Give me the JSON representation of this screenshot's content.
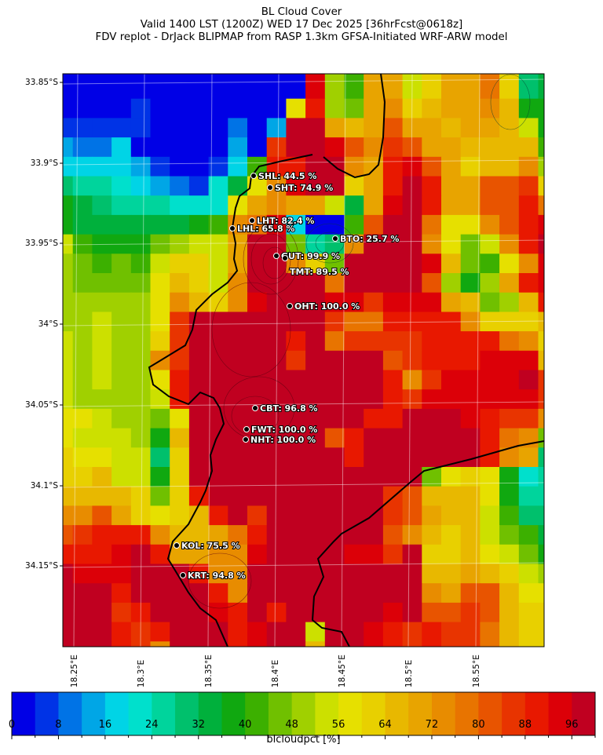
{
  "title": {
    "line1": "BL Cloud Cover",
    "line2": "Valid 1400 LST (1200Z) WED 17 Dec 2025 [36hrFcst@0618z]",
    "line3": "FDV replot - DrJack BLIPMAP from RASP 1.3km GFSA-Initiated WRF-ARW model"
  },
  "lat_ticks": [
    "33.85°S",
    "33.9°S",
    "33.95°S",
    "34°S",
    "34.05°S",
    "34.1°S",
    "34.15°S"
  ],
  "lon_ticks": [
    "18.25°E",
    "18.3°E",
    "18.35°E",
    "18.4°E",
    "18.45°E",
    "18.5°E",
    "18.55°E"
  ],
  "stations": [
    {
      "label": "SHL: 44.5 %"
    },
    {
      "label": "SHT: 74.9 %"
    },
    {
      "label": "LHT: 82.4 %"
    },
    {
      "label": "LHL: 65.8 %"
    },
    {
      "label": "BTO: 25.7 %"
    },
    {
      "label": "GUT: 99.9 %"
    },
    {
      "label": "TMT: 89.5 %"
    },
    {
      "label": "OHT: 100.0 %"
    },
    {
      "label": "CBT: 96.8 %"
    },
    {
      "label": "FWT: 100.0 %"
    },
    {
      "label": "NHT: 100.0 %"
    },
    {
      "label": "KOL: 75.5 %"
    },
    {
      "label": "KRT: 94.8 %"
    }
  ],
  "colorbar": {
    "label": "blcloudpct [%]",
    "ticks": [
      "0",
      "8",
      "16",
      "24",
      "32",
      "40",
      "48",
      "56",
      "64",
      "72",
      "80",
      "88",
      "96"
    ],
    "range": [
      0,
      100
    ],
    "bin_width": 4,
    "colors": [
      "#0000e6",
      "#0033e6",
      "#0073e6",
      "#00a6e6",
      "#00d4e6",
      "#00e0cc",
      "#00d49c",
      "#00c06c",
      "#00b03c",
      "#10a810",
      "#3cb000",
      "#70c000",
      "#a0d000",
      "#cce000",
      "#e6e000",
      "#e8d000",
      "#e8b800",
      "#e8a400",
      "#e88c00",
      "#e87400",
      "#e85400",
      "#e83400",
      "#e81800",
      "#dc0008",
      "#c00020"
    ]
  },
  "chart_data": {
    "type": "heatmap",
    "units": "%",
    "values": [
      [
        2,
        2,
        2,
        2,
        2,
        2,
        2,
        2,
        2,
        2,
        2,
        2,
        2,
        92,
        50,
        42,
        70,
        70,
        54,
        62,
        70,
        70,
        78,
        62,
        28,
        34
      ],
      [
        2,
        2,
        2,
        2,
        6,
        2,
        2,
        2,
        2,
        2,
        2,
        2,
        58,
        90,
        50,
        46,
        70,
        74,
        62,
        66,
        70,
        70,
        74,
        66,
        38,
        38
      ],
      [
        6,
        6,
        6,
        6,
        6,
        2,
        2,
        2,
        2,
        10,
        2,
        14,
        98,
        98,
        70,
        66,
        70,
        82,
        70,
        70,
        66,
        70,
        70,
        66,
        54,
        38
      ],
      [
        14,
        10,
        10,
        18,
        2,
        2,
        2,
        2,
        2,
        14,
        2,
        86,
        98,
        98,
        92,
        82,
        74,
        86,
        82,
        70,
        70,
        66,
        66,
        66,
        66,
        42
      ],
      [
        18,
        18,
        18,
        18,
        14,
        6,
        2,
        2,
        6,
        18,
        42,
        90,
        90,
        98,
        98,
        74,
        70,
        90,
        92,
        82,
        70,
        62,
        66,
        66,
        74,
        50
      ],
      [
        28,
        24,
        24,
        22,
        18,
        14,
        10,
        6,
        22,
        34,
        58,
        74,
        92,
        98,
        98,
        62,
        70,
        90,
        98,
        90,
        70,
        70,
        82,
        82,
        86,
        62
      ],
      [
        38,
        34,
        30,
        26,
        26,
        26,
        22,
        22,
        22,
        58,
        70,
        74,
        70,
        70,
        54,
        34,
        70,
        92,
        98,
        90,
        70,
        70,
        82,
        82,
        90,
        78
      ],
      [
        38,
        34,
        34,
        34,
        34,
        34,
        34,
        38,
        42,
        74,
        78,
        92,
        18,
        2,
        2,
        42,
        82,
        98,
        98,
        78,
        58,
        58,
        74,
        82,
        90,
        92
      ],
      [
        54,
        42,
        38,
        38,
        38,
        46,
        50,
        54,
        54,
        70,
        98,
        98,
        46,
        26,
        28,
        74,
        98,
        98,
        98,
        74,
        58,
        46,
        54,
        74,
        90,
        98
      ],
      [
        50,
        46,
        42,
        46,
        42,
        54,
        62,
        62,
        54,
        70,
        98,
        98,
        74,
        62,
        46,
        98,
        98,
        98,
        98,
        92,
        66,
        46,
        42,
        58,
        74,
        92
      ],
      [
        50,
        46,
        46,
        46,
        46,
        58,
        66,
        62,
        54,
        74,
        98,
        98,
        98,
        98,
        78,
        98,
        98,
        98,
        98,
        82,
        50,
        38,
        50,
        70,
        90,
        92
      ],
      [
        50,
        50,
        50,
        50,
        50,
        58,
        74,
        66,
        62,
        74,
        92,
        98,
        98,
        98,
        92,
        92,
        86,
        92,
        92,
        92,
        70,
        66,
        46,
        50,
        66,
        90
      ],
      [
        50,
        50,
        54,
        50,
        50,
        58,
        86,
        98,
        98,
        98,
        98,
        98,
        98,
        98,
        86,
        78,
        78,
        90,
        90,
        90,
        90,
        74,
        62,
        62,
        62,
        66
      ],
      [
        54,
        50,
        54,
        50,
        50,
        62,
        86,
        98,
        98,
        98,
        98,
        98,
        90,
        98,
        78,
        86,
        86,
        86,
        86,
        90,
        90,
        90,
        90,
        78,
        74,
        62
      ],
      [
        54,
        50,
        54,
        50,
        50,
        74,
        86,
        98,
        98,
        98,
        98,
        98,
        86,
        98,
        98,
        98,
        98,
        82,
        86,
        90,
        90,
        90,
        92,
        92,
        92,
        66
      ],
      [
        54,
        50,
        54,
        50,
        50,
        58,
        90,
        98,
        98,
        98,
        98,
        98,
        98,
        98,
        98,
        98,
        98,
        90,
        74,
        86,
        92,
        92,
        92,
        92,
        98,
        86
      ],
      [
        54,
        50,
        50,
        50,
        50,
        54,
        90,
        98,
        98,
        98,
        98,
        98,
        98,
        98,
        98,
        98,
        98,
        90,
        86,
        92,
        92,
        92,
        92,
        92,
        92,
        86
      ],
      [
        58,
        58,
        54,
        50,
        50,
        46,
        58,
        98,
        98,
        98,
        98,
        98,
        98,
        98,
        98,
        98,
        90,
        90,
        98,
        98,
        98,
        92,
        90,
        86,
        86,
        74
      ],
      [
        58,
        54,
        54,
        54,
        50,
        38,
        66,
        98,
        98,
        98,
        98,
        98,
        98,
        98,
        82,
        90,
        98,
        98,
        98,
        98,
        98,
        98,
        90,
        78,
        74,
        46
      ],
      [
        62,
        58,
        58,
        54,
        54,
        30,
        62,
        98,
        98,
        98,
        98,
        98,
        98,
        98,
        98,
        90,
        98,
        98,
        98,
        98,
        98,
        98,
        90,
        74,
        70,
        28
      ],
      [
        62,
        62,
        66,
        54,
        54,
        38,
        62,
        98,
        98,
        98,
        98,
        98,
        98,
        98,
        98,
        98,
        98,
        98,
        98,
        46,
        58,
        62,
        58,
        38,
        22,
        24
      ],
      [
        66,
        66,
        66,
        66,
        62,
        46,
        62,
        90,
        98,
        98,
        98,
        98,
        98,
        98,
        98,
        98,
        98,
        86,
        82,
        66,
        66,
        66,
        58,
        38,
        26,
        26
      ],
      [
        74,
        74,
        82,
        70,
        62,
        58,
        62,
        66,
        90,
        98,
        86,
        98,
        98,
        98,
        98,
        98,
        98,
        86,
        82,
        70,
        66,
        66,
        54,
        42,
        30,
        30
      ],
      [
        82,
        86,
        90,
        90,
        90,
        74,
        66,
        66,
        70,
        78,
        90,
        98,
        98,
        98,
        98,
        98,
        98,
        82,
        74,
        66,
        62,
        66,
        54,
        46,
        42,
        34
      ],
      [
        90,
        90,
        90,
        92,
        98,
        90,
        70,
        70,
        74,
        74,
        92,
        98,
        98,
        98,
        98,
        92,
        92,
        86,
        98,
        62,
        62,
        66,
        58,
        54,
        46,
        38
      ],
      [
        98,
        92,
        92,
        92,
        98,
        98,
        98,
        90,
        74,
        74,
        98,
        98,
        98,
        98,
        98,
        98,
        98,
        98,
        98,
        66,
        66,
        70,
        66,
        62,
        54,
        50
      ],
      [
        98,
        98,
        98,
        90,
        98,
        98,
        98,
        98,
        90,
        74,
        98,
        98,
        98,
        98,
        98,
        98,
        98,
        98,
        98,
        74,
        70,
        82,
        82,
        66,
        58,
        58
      ],
      [
        98,
        98,
        98,
        86,
        90,
        98,
        98,
        98,
        92,
        90,
        98,
        90,
        98,
        98,
        98,
        98,
        98,
        92,
        98,
        82,
        82,
        86,
        82,
        66,
        62,
        62
      ],
      [
        98,
        98,
        98,
        90,
        86,
        90,
        98,
        98,
        98,
        90,
        92,
        98,
        98,
        54,
        98,
        98,
        92,
        90,
        86,
        90,
        86,
        86,
        78,
        66,
        62,
        62
      ],
      [
        98,
        98,
        98,
        90,
        86,
        74,
        98,
        98,
        98,
        90,
        92,
        98,
        98,
        66,
        98,
        98,
        92,
        90,
        86,
        90,
        86,
        86,
        78,
        66,
        62,
        62
      ]
    ]
  }
}
